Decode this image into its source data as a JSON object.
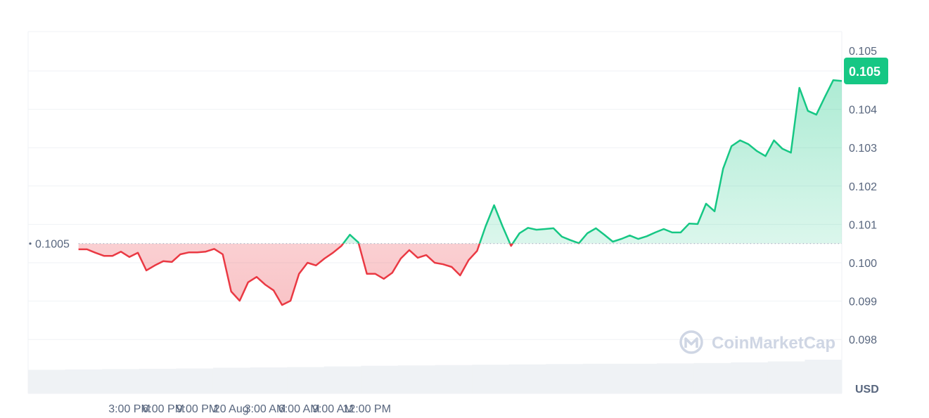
{
  "chart_data": {
    "type": "line",
    "title": "",
    "xlabel": "",
    "ylabel": "USD",
    "currency_label": "USD",
    "ylim": [
      0.098,
      0.1052
    ],
    "y_ticks": [
      "0.098",
      "0.099",
      "0.100",
      "0.101",
      "0.102",
      "0.103",
      "0.104",
      "0.105"
    ],
    "x_ticks": [
      "3:00 PM",
      "6:00 PM",
      "9:00 PM",
      "20 Aug",
      "3:00 AM",
      "6:00 AM",
      "9:00 AM",
      "12:00 PM"
    ],
    "grid": true,
    "baseline": {
      "value": 0.1005,
      "label": "0.1005"
    },
    "current_price": {
      "value": 0.105,
      "label": "0.105"
    },
    "watermark": "CoinMarketCap",
    "colors": {
      "up": "#16c784",
      "down": "#ea3943",
      "grid": "#eff2f5",
      "volume": "#eff2f5",
      "badge": "#16c784"
    },
    "x": [
      "13:30",
      "13:45",
      "14:00",
      "14:15",
      "14:30",
      "14:45",
      "15:00",
      "15:15",
      "15:30",
      "15:45",
      "16:00",
      "16:15",
      "16:30",
      "16:45",
      "17:00",
      "17:15",
      "17:30",
      "17:45",
      "18:00",
      "18:15",
      "18:30",
      "18:45",
      "19:00",
      "19:15",
      "19:30",
      "19:45",
      "20:00",
      "20:15",
      "20:30",
      "20:45",
      "21:00",
      "21:15",
      "21:30",
      "21:45",
      "22:00",
      "22:15",
      "22:30",
      "22:45",
      "23:00",
      "23:15",
      "23:30",
      "23:45",
      "00:00",
      "00:15",
      "00:30",
      "00:45",
      "01:00",
      "01:15",
      "01:30",
      "01:45",
      "02:00",
      "02:15",
      "02:30",
      "02:45",
      "03:00",
      "03:15",
      "03:30",
      "03:45",
      "04:00",
      "04:15",
      "04:30",
      "04:45",
      "05:00",
      "05:15",
      "05:30",
      "05:45",
      "06:00",
      "06:15",
      "06:30",
      "06:45",
      "07:00",
      "07:15",
      "07:30",
      "07:45",
      "08:00",
      "08:15",
      "08:30",
      "08:45",
      "09:00",
      "09:15",
      "09:30",
      "09:45",
      "10:00",
      "10:15",
      "10:30",
      "10:45",
      "11:00",
      "11:15",
      "11:30",
      "11:45",
      "12:00"
    ],
    "values": [
      0.10035,
      0.10035,
      0.10026,
      0.10018,
      0.10018,
      0.10029,
      0.10015,
      0.10026,
      0.0998,
      0.09993,
      0.10004,
      0.10002,
      0.10022,
      0.10027,
      0.10027,
      0.10029,
      0.10036,
      0.10022,
      0.09925,
      0.09901,
      0.09949,
      0.09963,
      0.09943,
      0.09928,
      0.0989,
      0.09901,
      0.09971,
      0.1,
      0.09993,
      0.10011,
      0.10026,
      0.10044,
      0.10073,
      0.10053,
      0.09971,
      0.09971,
      0.09958,
      0.09974,
      0.10011,
      0.10033,
      0.10013,
      0.1002,
      0.1,
      0.09996,
      0.09989,
      0.09967,
      0.10007,
      0.10031,
      0.10095,
      0.1015,
      0.10095,
      0.10044,
      0.10077,
      0.10091,
      0.10086,
      0.10088,
      0.1009,
      0.10068,
      0.10059,
      0.10051,
      0.10077,
      0.1009,
      0.10073,
      0.10055,
      0.10062,
      0.10071,
      0.10062,
      0.10069,
      0.10079,
      0.10088,
      0.10079,
      0.10079,
      0.10102,
      0.10101,
      0.10154,
      0.10134,
      0.10245,
      0.10304,
      0.10319,
      0.10309,
      0.10291,
      0.10278,
      0.10319,
      0.10297,
      0.10287,
      0.10456,
      0.10396,
      0.10386,
      0.10432,
      0.10476,
      0.10474
    ],
    "volume_relative": [
      0.7,
      0.71,
      0.72,
      0.73,
      0.74,
      0.76,
      0.77,
      0.78,
      0.8,
      0.82,
      0.83,
      0.84,
      0.85,
      0.86,
      0.87,
      0.88,
      0.88,
      0.89,
      0.9,
      0.92,
      0.95,
      1.0
    ]
  }
}
